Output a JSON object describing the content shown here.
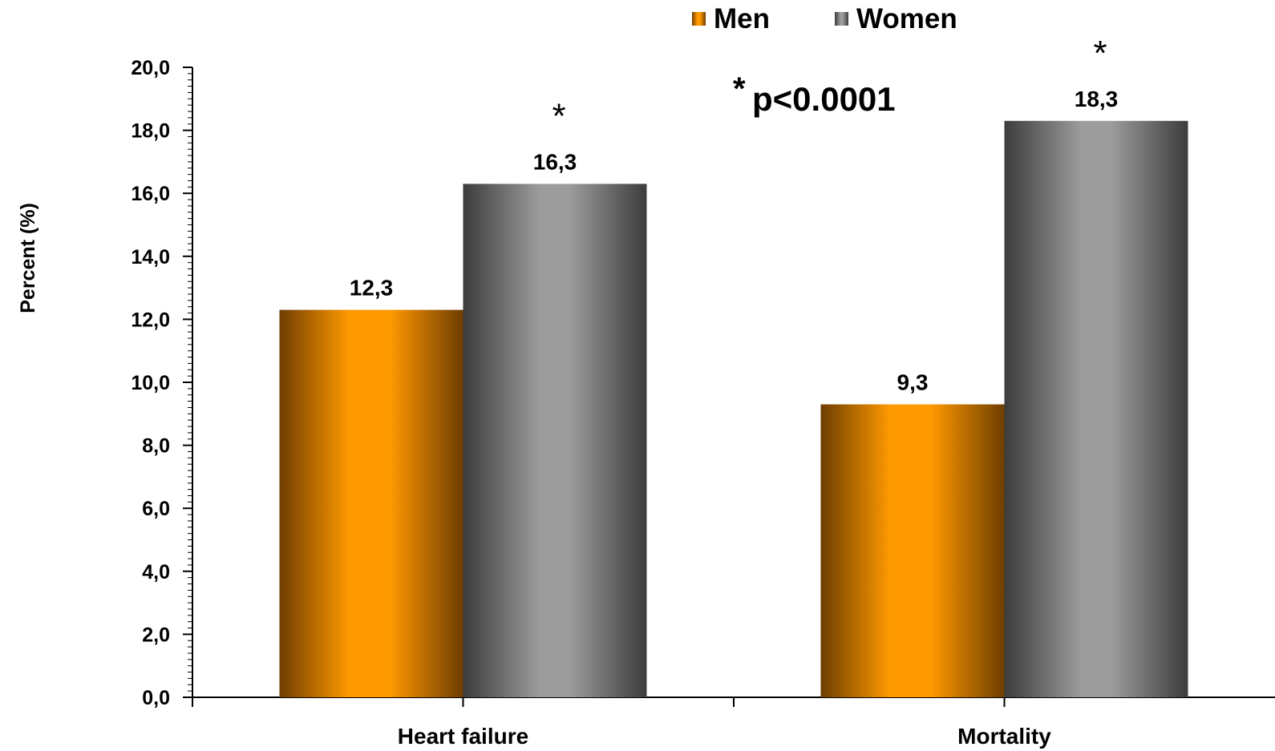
{
  "chart_data": {
    "type": "bar",
    "categories": [
      "Heart failure",
      "Mortality"
    ],
    "series": [
      {
        "name": "Men",
        "values": [
          12.3,
          9.3
        ],
        "value_labels": [
          "12,3",
          "9,3"
        ],
        "markers": [
          "",
          ""
        ]
      },
      {
        "name": "Women",
        "values": [
          16.3,
          18.3
        ],
        "value_labels": [
          "16,3",
          "18,3"
        ],
        "markers": [
          "*",
          "*"
        ]
      }
    ],
    "ylabel": "Percent (%)",
    "ylim": [
      0,
      20
    ],
    "yticks": [
      0,
      2,
      4,
      6,
      8,
      10,
      12,
      14,
      16,
      18,
      20
    ],
    "ytick_labels": [
      "0,0",
      "2,0",
      "4,0",
      "6,0",
      "8,0",
      "10,0",
      "12,0",
      "14,0",
      "16,0",
      "18,0",
      "20,0"
    ],
    "grid": false,
    "legend": {
      "placement": "top-center",
      "entries": [
        "Men",
        "Women"
      ]
    },
    "annotation": {
      "star": "*",
      "text": "p<0.0001"
    },
    "colors": {
      "men": "#ff9900",
      "men_dark": "#7a4500",
      "women": "#999999",
      "women_dark": "#3f3f3f"
    }
  }
}
